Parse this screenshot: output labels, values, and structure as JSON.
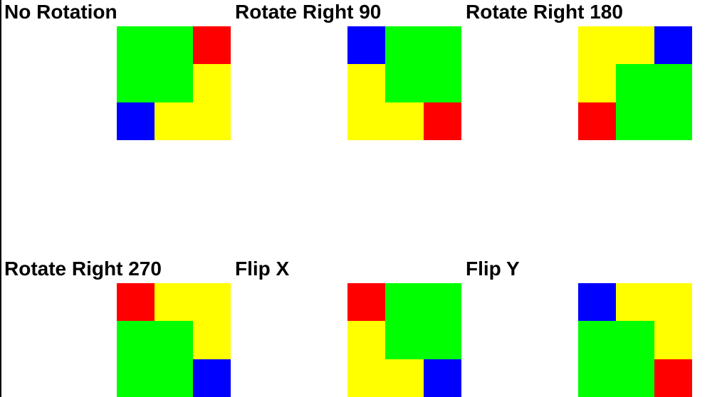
{
  "colors": {
    "red": "#ff0000",
    "green": "#00ff00",
    "blue": "#0000ff",
    "yellow": "#ffff00",
    "background": "#ffffff",
    "text": "#000000"
  },
  "panels": [
    {
      "title": "No Rotation"
    },
    {
      "title": "Rotate Right 90"
    },
    {
      "title": "Rotate Right 180"
    },
    {
      "title": "Rotate Right 270"
    },
    {
      "title": "Flip X"
    },
    {
      "title": "Flip Y"
    }
  ]
}
